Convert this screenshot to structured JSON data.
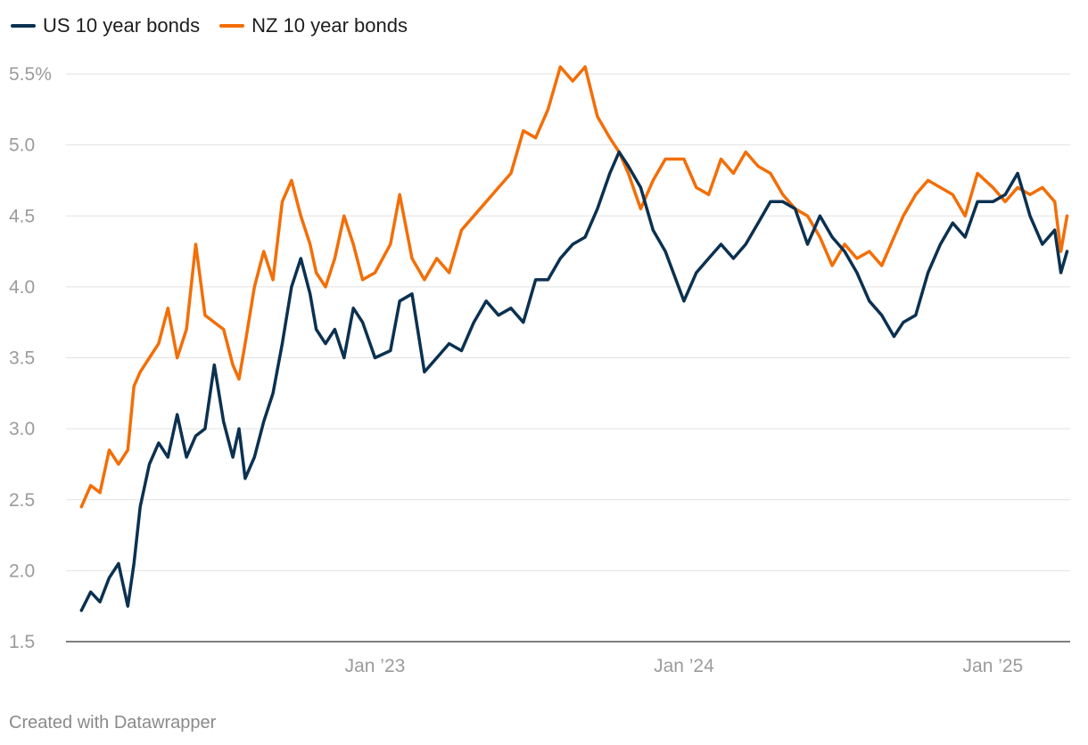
{
  "chart_data": {
    "type": "line",
    "title": "",
    "xlabel": "",
    "ylabel": "",
    "y_unit": "%",
    "ylim": [
      1.5,
      5.6
    ],
    "yticks": [
      {
        "value": 5.5,
        "label": "5.5%"
      },
      {
        "value": 5.0,
        "label": "5.0"
      },
      {
        "value": 4.5,
        "label": "4.5"
      },
      {
        "value": 4.0,
        "label": "4.0"
      },
      {
        "value": 3.5,
        "label": "3.5"
      },
      {
        "value": 3.0,
        "label": "3.0"
      },
      {
        "value": 2.5,
        "label": "2.5"
      },
      {
        "value": 2.0,
        "label": "2.0"
      },
      {
        "value": 1.5,
        "label": "1.5"
      }
    ],
    "xlim": [
      2022.0,
      2025.25
    ],
    "xticks": [
      {
        "value": 2023.0,
        "label": "Jan ’23"
      },
      {
        "value": 2024.0,
        "label": "Jan ’24"
      },
      {
        "value": 2025.0,
        "label": "Jan ’25"
      }
    ],
    "legend_position": "top-left",
    "series": [
      {
        "name": "US 10 year bonds",
        "color": "#0b3151",
        "x": [
          2022.05,
          2022.08,
          2022.11,
          2022.14,
          2022.17,
          2022.2,
          2022.22,
          2022.24,
          2022.27,
          2022.3,
          2022.33,
          2022.36,
          2022.39,
          2022.42,
          2022.45,
          2022.48,
          2022.51,
          2022.54,
          2022.56,
          2022.58,
          2022.61,
          2022.64,
          2022.67,
          2022.7,
          2022.73,
          2022.76,
          2022.79,
          2022.81,
          2022.84,
          2022.87,
          2022.9,
          2022.93,
          2022.96,
          2023.0,
          2023.05,
          2023.08,
          2023.12,
          2023.16,
          2023.2,
          2023.24,
          2023.28,
          2023.32,
          2023.36,
          2023.4,
          2023.44,
          2023.48,
          2023.52,
          2023.56,
          2023.6,
          2023.64,
          2023.68,
          2023.72,
          2023.76,
          2023.79,
          2023.82,
          2023.86,
          2023.9,
          2023.94,
          2024.0,
          2024.04,
          2024.08,
          2024.12,
          2024.16,
          2024.2,
          2024.24,
          2024.28,
          2024.32,
          2024.36,
          2024.4,
          2024.44,
          2024.48,
          2024.52,
          2024.56,
          2024.6,
          2024.64,
          2024.68,
          2024.71,
          2024.75,
          2024.79,
          2024.83,
          2024.87,
          2024.91,
          2024.95,
          2025.0,
          2025.04,
          2025.08,
          2025.12,
          2025.16,
          2025.2,
          2025.22,
          2025.24
        ],
        "values": [
          1.72,
          1.85,
          1.78,
          1.95,
          2.05,
          1.75,
          2.05,
          2.45,
          2.75,
          2.9,
          2.8,
          3.1,
          2.8,
          2.95,
          3.0,
          3.45,
          3.05,
          2.8,
          3.0,
          2.65,
          2.8,
          3.05,
          3.25,
          3.6,
          4.0,
          4.2,
          3.95,
          3.7,
          3.6,
          3.7,
          3.5,
          3.85,
          3.75,
          3.5,
          3.55,
          3.9,
          3.95,
          3.4,
          3.5,
          3.6,
          3.55,
          3.75,
          3.9,
          3.8,
          3.85,
          3.75,
          4.05,
          4.05,
          4.2,
          4.3,
          4.35,
          4.55,
          4.8,
          4.95,
          4.85,
          4.7,
          4.4,
          4.25,
          3.9,
          4.1,
          4.2,
          4.3,
          4.2,
          4.3,
          4.45,
          4.6,
          4.6,
          4.55,
          4.3,
          4.5,
          4.35,
          4.25,
          4.1,
          3.9,
          3.8,
          3.65,
          3.75,
          3.8,
          4.1,
          4.3,
          4.45,
          4.35,
          4.6,
          4.6,
          4.65,
          4.8,
          4.5,
          4.3,
          4.4,
          4.1,
          4.25
        ]
      },
      {
        "name": "NZ 10 year bonds",
        "color": "#f36e07",
        "x": [
          2022.05,
          2022.08,
          2022.11,
          2022.14,
          2022.17,
          2022.2,
          2022.22,
          2022.24,
          2022.27,
          2022.3,
          2022.33,
          2022.36,
          2022.39,
          2022.42,
          2022.45,
          2022.48,
          2022.51,
          2022.54,
          2022.56,
          2022.58,
          2022.61,
          2022.64,
          2022.67,
          2022.7,
          2022.73,
          2022.76,
          2022.79,
          2022.81,
          2022.84,
          2022.87,
          2022.9,
          2022.93,
          2022.96,
          2023.0,
          2023.05,
          2023.08,
          2023.12,
          2023.16,
          2023.2,
          2023.24,
          2023.28,
          2023.32,
          2023.36,
          2023.4,
          2023.44,
          2023.48,
          2023.52,
          2023.56,
          2023.6,
          2023.64,
          2023.68,
          2023.72,
          2023.76,
          2023.79,
          2023.82,
          2023.86,
          2023.9,
          2023.94,
          2024.0,
          2024.04,
          2024.08,
          2024.12,
          2024.16,
          2024.2,
          2024.24,
          2024.28,
          2024.32,
          2024.36,
          2024.4,
          2024.44,
          2024.48,
          2024.52,
          2024.56,
          2024.6,
          2024.64,
          2024.68,
          2024.71,
          2024.75,
          2024.79,
          2024.83,
          2024.87,
          2024.91,
          2024.95,
          2025.0,
          2025.04,
          2025.08,
          2025.12,
          2025.16,
          2025.2,
          2025.22,
          2025.24
        ],
        "values": [
          2.45,
          2.6,
          2.55,
          2.85,
          2.75,
          2.85,
          3.3,
          3.4,
          3.5,
          3.6,
          3.85,
          3.5,
          3.7,
          4.3,
          3.8,
          3.75,
          3.7,
          3.45,
          3.35,
          3.6,
          4.0,
          4.25,
          4.05,
          4.6,
          4.75,
          4.5,
          4.3,
          4.1,
          4.0,
          4.2,
          4.5,
          4.3,
          4.05,
          4.1,
          4.3,
          4.65,
          4.2,
          4.05,
          4.2,
          4.1,
          4.4,
          4.5,
          4.6,
          4.7,
          4.8,
          5.1,
          5.05,
          5.25,
          5.55,
          5.45,
          5.55,
          5.2,
          5.05,
          4.95,
          4.8,
          4.55,
          4.75,
          4.9,
          4.9,
          4.7,
          4.65,
          4.9,
          4.8,
          4.95,
          4.85,
          4.8,
          4.65,
          4.55,
          4.5,
          4.35,
          4.15,
          4.3,
          4.2,
          4.25,
          4.15,
          4.35,
          4.5,
          4.65,
          4.75,
          4.7,
          4.65,
          4.5,
          4.8,
          4.7,
          4.6,
          4.7,
          4.65,
          4.7,
          4.6,
          4.25,
          4.5
        ]
      }
    ]
  },
  "footer": {
    "credit": "Created with Datawrapper"
  }
}
